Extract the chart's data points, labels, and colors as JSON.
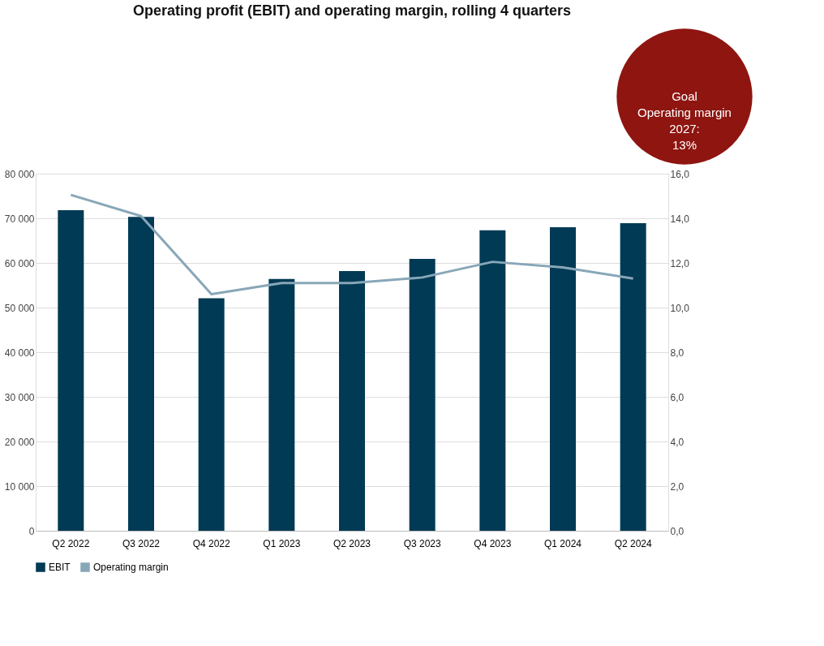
{
  "chart_data": {
    "type": "bar",
    "title": "Operating profit (EBIT) and operating margin, rolling 4 quarters",
    "categories": [
      "Q2 2022",
      "Q3 2022",
      "Q4 2022",
      "Q1 2023",
      "Q2 2023",
      "Q3 2023",
      "Q4 2023",
      "Q1 2024",
      "Q2 2024"
    ],
    "series": [
      {
        "name": "EBIT",
        "color": "#003a54",
        "values": [
          71800,
          70300,
          52100,
          56400,
          58200,
          60900,
          67300,
          68000,
          68900
        ]
      },
      {
        "name": "Operating margin",
        "type": "line",
        "axis": "y2",
        "color": "#88a7b8",
        "values": [
          15.05,
          14.1,
          10.6,
          11.1,
          11.1,
          11.35,
          12.05,
          11.8,
          11.3
        ]
      }
    ],
    "ylim": [
      0,
      80000
    ],
    "yticks": [
      {
        "value": 0,
        "label": "0"
      },
      {
        "value": 10000,
        "label": "10 000"
      },
      {
        "value": 20000,
        "label": "20 000"
      },
      {
        "value": 30000,
        "label": "30 000"
      },
      {
        "value": 40000,
        "label": "40 000"
      },
      {
        "value": 50000,
        "label": "50 000"
      },
      {
        "value": 60000,
        "label": "60 000"
      },
      {
        "value": 70000,
        "label": "70 000"
      },
      {
        "value": 80000,
        "label": "80 000"
      }
    ],
    "y2lim": [
      0,
      16
    ],
    "y2ticks": [
      {
        "value": 0,
        "label": "0,0"
      },
      {
        "value": 2,
        "label": "2,0"
      },
      {
        "value": 4,
        "label": "4,0"
      },
      {
        "value": 6,
        "label": "6,0"
      },
      {
        "value": 8,
        "label": "8,0"
      },
      {
        "value": 10,
        "label": "10,0"
      },
      {
        "value": 12,
        "label": "12,0"
      },
      {
        "value": 14,
        "label": "14,0"
      },
      {
        "value": 16,
        "label": "16,0"
      }
    ],
    "grid": "y",
    "legend": "bottom",
    "marker": "none",
    "line_style": "solid",
    "annotations": [
      "Goal\nOperating margin\n2027:\n13%"
    ]
  }
}
